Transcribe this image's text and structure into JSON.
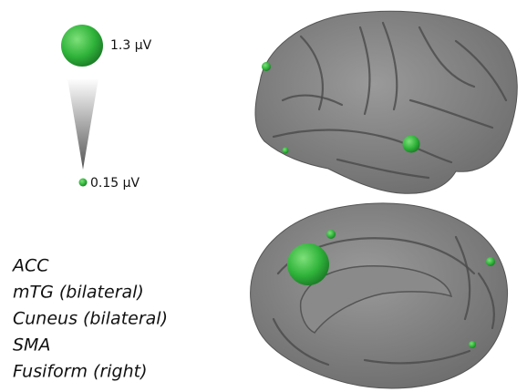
{
  "legend": {
    "max_label": "1.3 µV",
    "min_label": "0.15 µV"
  },
  "regions": [
    "ACC",
    "mTG (bilateral)",
    "Cuneus (bilateral)",
    "SMA",
    "Fusiform (right)"
  ]
}
